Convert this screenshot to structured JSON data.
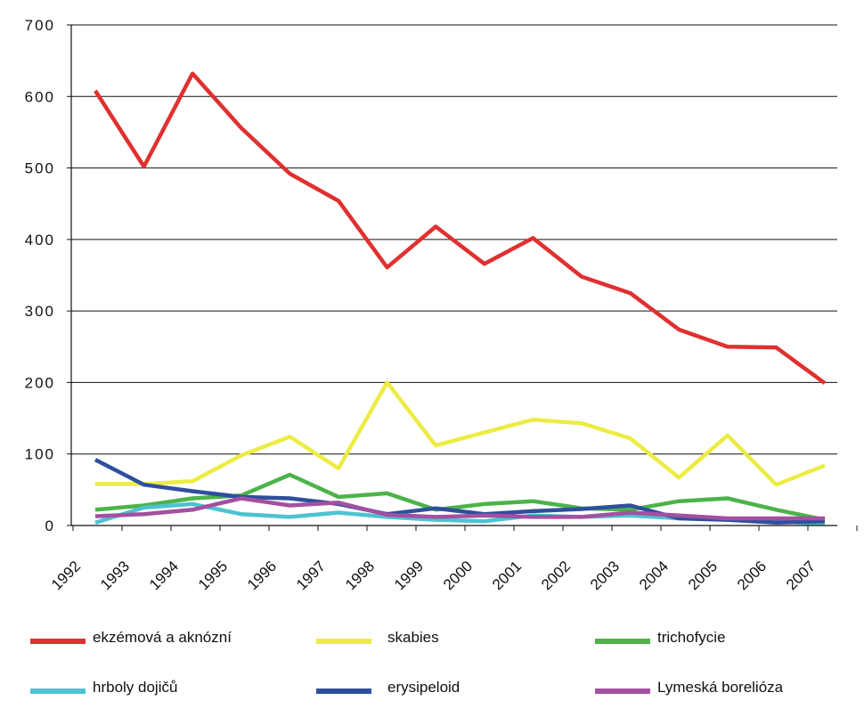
{
  "chart_data": {
    "type": "line",
    "title": "",
    "xlabel": "",
    "ylabel": "",
    "ylim": [
      0,
      700
    ],
    "yticks": [
      0,
      100,
      200,
      300,
      400,
      500,
      600,
      700
    ],
    "ytick_labels": [
      "0",
      "100",
      "200",
      "300",
      "400",
      "500",
      "600",
      "700"
    ],
    "x_tick_labels": [
      "1992",
      "1993",
      "1994",
      "1995",
      "1996",
      "1997",
      "1998",
      "1999",
      "2000",
      "2001",
      "2002",
      "2003",
      "2004",
      "2005",
      "2006",
      "2007"
    ],
    "grid": "horizontal",
    "legend_position": "bottom",
    "series": [
      {
        "name": "ekzémová a aknózní",
        "color": "#e03030",
        "values": [
          608,
          502,
          632,
          556,
          492,
          454,
          361,
          418,
          366,
          402,
          348,
          325,
          274,
          250,
          249,
          199
        ]
      },
      {
        "name": "skabies",
        "color": "#ecec44",
        "values": [
          58,
          58,
          62,
          98,
          124,
          80,
          200,
          112,
          130,
          148,
          143,
          122,
          67,
          126,
          57,
          84
        ]
      },
      {
        "name": "trichofycie",
        "color": "#4cb34a",
        "values": [
          22,
          28,
          38,
          42,
          71,
          40,
          45,
          22,
          30,
          34,
          24,
          22,
          34,
          38,
          22,
          8
        ]
      },
      {
        "name": "hrboly dojičů",
        "color": "#4ec3d0",
        "values": [
          4,
          25,
          30,
          16,
          12,
          18,
          12,
          8,
          6,
          14,
          12,
          14,
          10,
          8,
          6,
          2
        ]
      },
      {
        "name": "erysipeloid",
        "color": "#2f4f9d",
        "values": [
          92,
          57,
          48,
          40,
          38,
          30,
          16,
          24,
          16,
          20,
          23,
          28,
          10,
          8,
          4,
          6
        ]
      },
      {
        "name": "Lymeská borelióza",
        "color": "#a450a0",
        "values": [
          13,
          16,
          22,
          38,
          28,
          32,
          15,
          12,
          14,
          12,
          12,
          18,
          14,
          10,
          10,
          10
        ]
      }
    ]
  }
}
